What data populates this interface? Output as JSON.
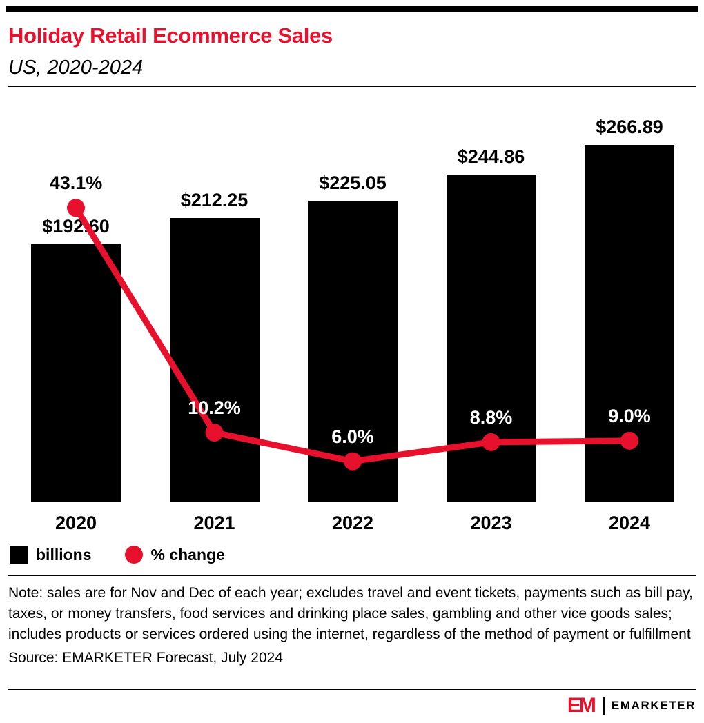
{
  "chart_data": {
    "type": "bar",
    "title": "Holiday Retail Ecommerce Sales",
    "subtitle": "US, 2020-2024",
    "categories": [
      "2020",
      "2021",
      "2022",
      "2023",
      "2024"
    ],
    "series": [
      {
        "name": "billions",
        "type": "bar",
        "color": "#000000",
        "values": [
          192.6,
          212.25,
          225.05,
          244.86,
          266.89
        ],
        "labels": [
          "$192.60",
          "$212.25",
          "$225.05",
          "$244.86",
          "$266.89"
        ]
      },
      {
        "name": "% change",
        "type": "line",
        "color": "#e8112d",
        "values": [
          43.1,
          10.2,
          6.0,
          8.8,
          9.0
        ],
        "labels": [
          "43.1%",
          "10.2%",
          "6.0%",
          "8.8%",
          "9.0%"
        ],
        "label_colors": [
          "#000000",
          "#ffffff",
          "#ffffff",
          "#ffffff",
          "#ffffff"
        ]
      }
    ],
    "legend_position": "bottom-left",
    "grid": false,
    "y_axis": "hidden"
  },
  "note": "Note: sales are for Nov and Dec of each year; excludes travel and event tickets, payments such as bill pay, taxes, or money transfers, food services and drinking place sales, gambling and other vice goods sales; includes products or services ordered using the internet, regardless of the method of payment or fulfillment",
  "source": "Source: EMARKETER Forecast, July 2024",
  "footer": {
    "logo_monogram": "EM",
    "logo_text": "EMARKETER"
  },
  "colors": {
    "accent_red": "#e8112d",
    "bar_black": "#000000"
  }
}
